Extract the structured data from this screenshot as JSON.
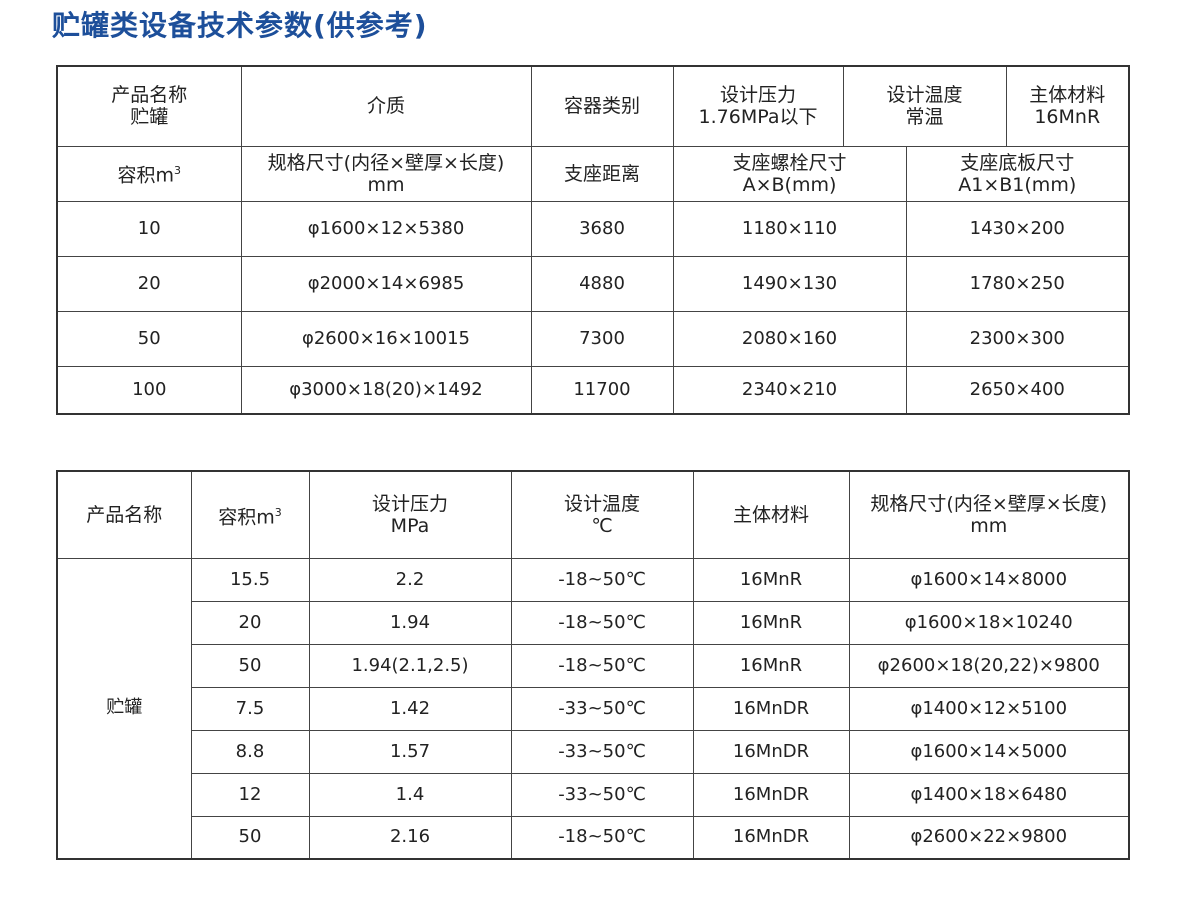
{
  "title": "贮罐类设备技术参数(供参考)",
  "table1": {
    "header1": [
      "产品名称\n贮罐",
      "介质",
      "容器类别",
      "设计压力\n1.76MPa以下",
      "设计温度\n常温",
      "主体材料\n16MnR"
    ],
    "header2": [
      "容积m³",
      "规格尺寸(内径×壁厚×长度)\nmm",
      "支座距离",
      "支座螺栓尺寸\nA×B(mm)",
      "支座底板尺寸\nA1×B1(mm)"
    ],
    "rows": [
      [
        "10",
        "φ1600×12×5380",
        "3680",
        "1180×110",
        "1430×200"
      ],
      [
        "20",
        "φ2000×14×6985",
        "4880",
        "1490×130",
        "1780×250"
      ],
      [
        "50",
        "φ2600×16×10015",
        "7300",
        "2080×160",
        "2300×300"
      ],
      [
        "100",
        "φ3000×18(20)×1492",
        "11700",
        "2340×210",
        "2650×400"
      ]
    ]
  },
  "table2": {
    "header": [
      "产品名称",
      "容积m³",
      "设计压力\nMPa",
      "设计温度\n℃",
      "主体材料",
      "规格尺寸(内径×壁厚×长度)\nmm"
    ],
    "product": "贮罐",
    "rows": [
      [
        "15.5",
        "2.2",
        "-18~50℃",
        "16MnR",
        "φ1600×14×8000"
      ],
      [
        "20",
        "1.94",
        "-18~50℃",
        "16MnR",
        "φ1600×18×10240"
      ],
      [
        "50",
        "1.94(2.1,2.5)",
        "-18~50℃",
        "16MnR",
        "φ2600×18(20,22)×9800"
      ],
      [
        "7.5",
        "1.42",
        "-33~50℃",
        "16MnDR",
        "φ1400×12×5100"
      ],
      [
        "8.8",
        "1.57",
        "-33~50℃",
        "16MnDR",
        "φ1600×14×5000"
      ],
      [
        "12",
        "1.4",
        "-33~50℃",
        "16MnDR",
        "φ1400×18×6480"
      ],
      [
        "50",
        "2.16",
        "-18~50℃",
        "16MnDR",
        "φ2600×22×9800"
      ]
    ]
  },
  "colors": {
    "title": "#1d4f9a",
    "border": "#444444"
  }
}
